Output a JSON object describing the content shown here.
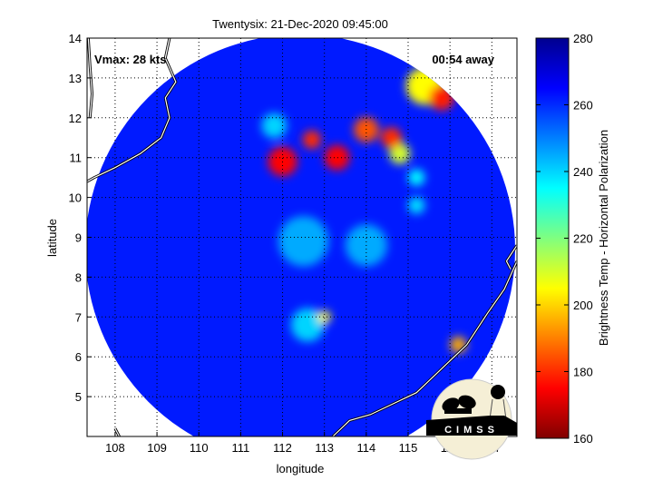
{
  "chart_data": {
    "type": "heatmap",
    "title": "Twentysix: 21-Dec-2020 09:45:00",
    "xlabel": "longitude",
    "ylabel": "latitude",
    "xlim": [
      107.33,
      117.6
    ],
    "ylim": [
      4.0,
      14.0
    ],
    "xticks": [
      108,
      109,
      110,
      111,
      112,
      113,
      114,
      115,
      116,
      117
    ],
    "yticks": [
      5,
      6,
      7,
      8,
      9,
      10,
      11,
      12,
      13,
      14
    ],
    "grid": true,
    "annotations": {
      "vmax": "Vmax: 28 kts",
      "away": "00:54 away"
    },
    "colorbar": {
      "label": "Brightness Temp - Horizontal Polarization",
      "colormap": "jet (reversed)",
      "range": [
        160,
        280
      ],
      "ticks": [
        160,
        180,
        200,
        220,
        240,
        260,
        280
      ]
    },
    "background_value": 262,
    "features": [
      {
        "lon": 112.0,
        "lat": 10.9,
        "value": 175,
        "radius": 0.35
      },
      {
        "lon": 112.7,
        "lat": 11.45,
        "value": 180,
        "radius": 0.22
      },
      {
        "lon": 113.3,
        "lat": 11.0,
        "value": 175,
        "radius": 0.3
      },
      {
        "lon": 114.0,
        "lat": 11.7,
        "value": 185,
        "radius": 0.3
      },
      {
        "lon": 114.6,
        "lat": 11.5,
        "value": 180,
        "radius": 0.25
      },
      {
        "lon": 114.8,
        "lat": 11.1,
        "value": 210,
        "radius": 0.25
      },
      {
        "lon": 115.4,
        "lat": 12.8,
        "value": 205,
        "radius": 0.45
      },
      {
        "lon": 115.8,
        "lat": 12.5,
        "value": 178,
        "radius": 0.3
      },
      {
        "lon": 113.0,
        "lat": 7.0,
        "value": 205,
        "radius": 0.15
      },
      {
        "lon": 116.2,
        "lat": 6.3,
        "value": 195,
        "radius": 0.2
      },
      {
        "lon": 112.5,
        "lat": 8.9,
        "value": 245,
        "radius": 0.6
      },
      {
        "lon": 114.0,
        "lat": 8.8,
        "value": 245,
        "radius": 0.5
      },
      {
        "lon": 111.8,
        "lat": 11.8,
        "value": 240,
        "radius": 0.3
      },
      {
        "lon": 115.2,
        "lat": 10.5,
        "value": 235,
        "radius": 0.2
      },
      {
        "lon": 112.6,
        "lat": 6.8,
        "value": 240,
        "radius": 0.4
      },
      {
        "lon": 115.2,
        "lat": 9.8,
        "value": 238,
        "radius": 0.2
      }
    ],
    "coastlines": [
      [
        [
          109.3,
          14.0
        ],
        [
          109.2,
          13.5
        ],
        [
          109.45,
          12.9
        ],
        [
          109.2,
          12.5
        ],
        [
          109.3,
          12.0
        ],
        [
          109.1,
          11.5
        ],
        [
          108.6,
          11.1
        ],
        [
          108.0,
          10.75
        ],
        [
          107.5,
          10.5
        ],
        [
          107.33,
          10.4
        ]
      ],
      [
        [
          107.36,
          14.0
        ],
        [
          107.4,
          13.3
        ],
        [
          107.45,
          12.6
        ],
        [
          107.4,
          12.0
        ]
      ],
      [
        [
          117.6,
          8.4
        ],
        [
          117.3,
          7.7
        ],
        [
          116.9,
          7.1
        ],
        [
          116.4,
          6.3
        ],
        [
          115.9,
          5.8
        ],
        [
          115.5,
          5.4
        ],
        [
          115.2,
          5.1
        ],
        [
          114.6,
          4.8
        ],
        [
          114.1,
          4.55
        ],
        [
          113.6,
          4.4
        ],
        [
          113.2,
          4.0
        ]
      ],
      [
        [
          117.6,
          8.8
        ],
        [
          117.35,
          8.4
        ],
        [
          117.45,
          8.2
        ]
      ],
      [
        [
          108.0,
          4.2
        ],
        [
          108.1,
          4.0
        ]
      ]
    ]
  },
  "logo": {
    "text": "CIMSS"
  }
}
